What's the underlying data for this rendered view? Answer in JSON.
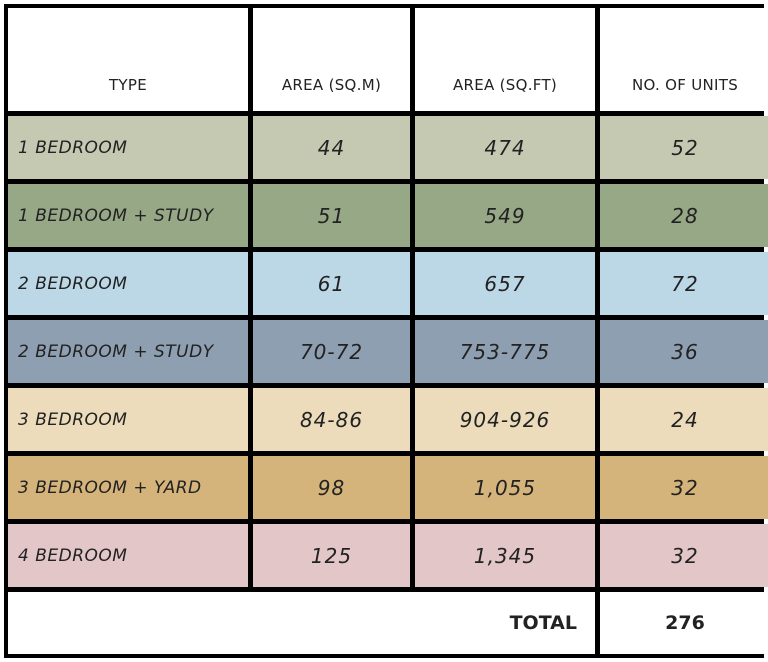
{
  "headers": {
    "type": "TYPE",
    "area_sqm": "AREA (SQ.M)",
    "area_sqft": "AREA (SQ.FT)",
    "units": "NO. OF UNITS"
  },
  "rows": [
    {
      "type": "1 BEDROOM",
      "sqm": "44",
      "sqft": "474",
      "units": "52",
      "color": "#c5c9b1"
    },
    {
      "type": "1 BEDROOM + STUDY",
      "sqm": "51",
      "sqft": "549",
      "units": "28",
      "color": "#97a886"
    },
    {
      "type": "2 BEDROOM",
      "sqm": "61",
      "sqft": "657",
      "units": "72",
      "color": "#bcd8e7"
    },
    {
      "type": "2 BEDROOM + STUDY",
      "sqm": "70-72",
      "sqft": "753-775",
      "units": "36",
      "color": "#8e9fb1"
    },
    {
      "type": "3 BEDROOM",
      "sqm": "84-86",
      "sqft": "904-926",
      "units": "24",
      "color": "#ecdcbc"
    },
    {
      "type": "3 BEDROOM + YARD",
      "sqm": "98",
      "sqft": "1,055",
      "units": "32",
      "color": "#d5b47c"
    },
    {
      "type": "4 BEDROOM",
      "sqm": "125",
      "sqft": "1,345",
      "units": "32",
      "color": "#e3c6c8"
    }
  ],
  "total": {
    "label": "TOTAL",
    "value": "276"
  }
}
